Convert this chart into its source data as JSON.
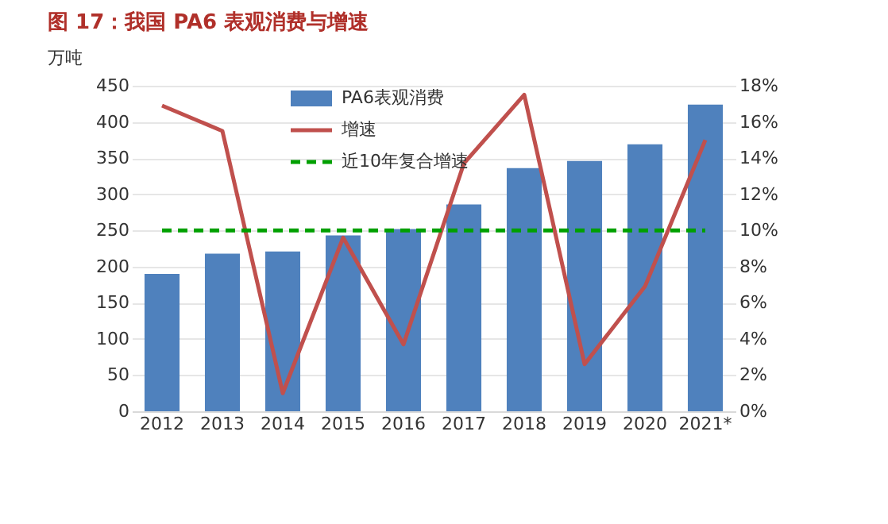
{
  "chart_data": {
    "type": "bar",
    "title": "图 17：我国 PA6 表观消费与增速",
    "ylabel": "万吨",
    "categories": [
      "2012",
      "2013",
      "2014",
      "2015",
      "2016",
      "2017",
      "2018",
      "2019",
      "2020",
      "2021*"
    ],
    "series": [
      {
        "name": "PA6表观消费",
        "color": "#4f81bd",
        "values": [
          190,
          218,
          221,
          243,
          252,
          286,
          336,
          346,
          369,
          424
        ]
      },
      {
        "name": "增速",
        "type": "line",
        "axis": "y2",
        "color": "#c0504d",
        "values": [
          16.9,
          15.5,
          1.0,
          9.6,
          3.7,
          13.7,
          17.5,
          2.6,
          6.9,
          15.0
        ]
      }
    ],
    "ref_lines": [
      {
        "axis": "y2",
        "value": 10,
        "label": "近10年复合增速",
        "color": "#00a000",
        "line_style": "dashed"
      }
    ],
    "ylim": [
      0,
      450
    ],
    "yticks": [
      0,
      50,
      100,
      150,
      200,
      250,
      300,
      350,
      400,
      450
    ],
    "y2lim": [
      0,
      18
    ],
    "y2ticks": [
      {
        "value": 0,
        "label": "0%"
      },
      {
        "value": 2,
        "label": "2%"
      },
      {
        "value": 4,
        "label": "4%"
      },
      {
        "value": 6,
        "label": "6%"
      },
      {
        "value": 8,
        "label": "8%"
      },
      {
        "value": 10,
        "label": "10%"
      },
      {
        "value": 12,
        "label": "12%"
      },
      {
        "value": 14,
        "label": "14%"
      },
      {
        "value": 16,
        "label": "16%"
      },
      {
        "value": 18,
        "label": "18%"
      }
    ],
    "grid": "y",
    "legend": "top left"
  }
}
